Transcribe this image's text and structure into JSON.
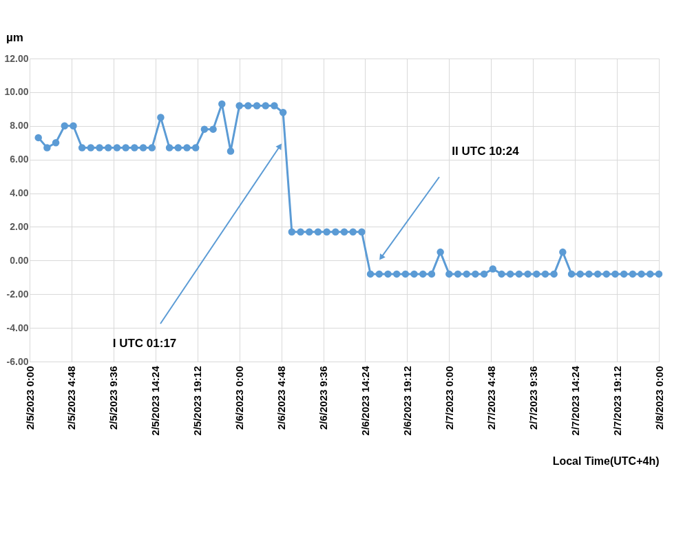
{
  "chart_data": {
    "type": "line",
    "ylabel": "µm",
    "xlabel": "Local Time(UTC+4h)",
    "x": [
      "2023-02-05T01:00",
      "2023-02-05T02:00",
      "2023-02-05T03:00",
      "2023-02-05T04:00",
      "2023-02-05T05:00",
      "2023-02-05T06:00",
      "2023-02-05T07:00",
      "2023-02-05T08:00",
      "2023-02-05T09:00",
      "2023-02-05T10:00",
      "2023-02-05T11:00",
      "2023-02-05T12:00",
      "2023-02-05T13:00",
      "2023-02-05T14:00",
      "2023-02-05T15:00",
      "2023-02-05T16:00",
      "2023-02-05T17:00",
      "2023-02-05T18:00",
      "2023-02-05T19:00",
      "2023-02-05T20:00",
      "2023-02-05T21:00",
      "2023-02-05T22:00",
      "2023-02-05T23:00",
      "2023-02-06T00:00",
      "2023-02-06T01:00",
      "2023-02-06T02:00",
      "2023-02-06T03:00",
      "2023-02-06T04:00",
      "2023-02-06T05:00",
      "2023-02-06T06:00",
      "2023-02-06T07:00",
      "2023-02-06T08:00",
      "2023-02-06T09:00",
      "2023-02-06T10:00",
      "2023-02-06T11:00",
      "2023-02-06T12:00",
      "2023-02-06T13:00",
      "2023-02-06T14:00",
      "2023-02-06T15:00",
      "2023-02-06T16:00",
      "2023-02-06T17:00",
      "2023-02-06T18:00",
      "2023-02-06T19:00",
      "2023-02-06T20:00",
      "2023-02-06T21:00",
      "2023-02-06T22:00",
      "2023-02-06T23:00",
      "2023-02-07T00:00",
      "2023-02-07T01:00",
      "2023-02-07T02:00",
      "2023-02-07T03:00",
      "2023-02-07T04:00",
      "2023-02-07T05:00",
      "2023-02-07T06:00",
      "2023-02-07T07:00",
      "2023-02-07T08:00",
      "2023-02-07T09:00",
      "2023-02-07T10:00",
      "2023-02-07T11:00",
      "2023-02-07T12:00",
      "2023-02-07T13:00",
      "2023-02-07T14:00",
      "2023-02-07T15:00",
      "2023-02-07T16:00",
      "2023-02-07T17:00",
      "2023-02-07T18:00",
      "2023-02-07T19:00",
      "2023-02-07T20:00",
      "2023-02-07T21:00",
      "2023-02-07T22:00",
      "2023-02-07T23:00",
      "2023-02-08T00:00"
    ],
    "series": [
      {
        "color": "#5b9bd5",
        "values": [
          7.3,
          6.7,
          7.0,
          8.0,
          8.0,
          6.7,
          6.7,
          6.7,
          6.7,
          6.7,
          6.7,
          6.7,
          6.7,
          6.7,
          8.5,
          6.7,
          6.7,
          6.7,
          6.7,
          7.8,
          7.8,
          9.3,
          6.5,
          9.2,
          9.2,
          9.2,
          9.2,
          9.2,
          8.8,
          1.7,
          1.7,
          1.7,
          1.7,
          1.7,
          1.7,
          1.7,
          1.7,
          1.7,
          -0.8,
          -0.8,
          -0.8,
          -0.8,
          -0.8,
          -0.8,
          -0.8,
          -0.8,
          0.5,
          -0.8,
          -0.8,
          -0.8,
          -0.8,
          -0.8,
          -0.5,
          -0.8,
          -0.8,
          -0.8,
          -0.8,
          -0.8,
          -0.8,
          -0.8,
          0.5,
          -0.8,
          -0.8,
          -0.8,
          -0.8,
          -0.8,
          -0.8,
          -0.8,
          -0.8,
          -0.8,
          -0.8,
          -0.8
        ]
      }
    ],
    "xlim": [
      "2023-02-05T00:00",
      "2023-02-08T00:00"
    ],
    "xticks": [
      {
        "value": "2023-02-05T00:00",
        "label": "2/5/2023 0:00"
      },
      {
        "value": "2023-02-05T04:48",
        "label": "2/5/2023 4:48"
      },
      {
        "value": "2023-02-05T09:36",
        "label": "2/5/2023 9:36"
      },
      {
        "value": "2023-02-05T14:24",
        "label": "2/5/2023 14:24"
      },
      {
        "value": "2023-02-05T19:12",
        "label": "2/5/2023 19:12"
      },
      {
        "value": "2023-02-06T00:00",
        "label": "2/6/2023 0:00"
      },
      {
        "value": "2023-02-06T04:48",
        "label": "2/6/2023 4:48"
      },
      {
        "value": "2023-02-06T09:36",
        "label": "2/6/2023 9:36"
      },
      {
        "value": "2023-02-06T14:24",
        "label": "2/6/2023 14:24"
      },
      {
        "value": "2023-02-06T19:12",
        "label": "2/6/2023 19:12"
      },
      {
        "value": "2023-02-07T00:00",
        "label": "2/7/2023 0:00"
      },
      {
        "value": "2023-02-07T04:48",
        "label": "2/7/2023 4:48"
      },
      {
        "value": "2023-02-07T09:36",
        "label": "2/7/2023 9:36"
      },
      {
        "value": "2023-02-07T14:24",
        "label": "2/7/2023 14:24"
      },
      {
        "value": "2023-02-07T19:12",
        "label": "2/7/2023 19:12"
      },
      {
        "value": "2023-02-08T00:00",
        "label": "2/8/2023 0:00"
      }
    ],
    "ylim": [
      -6,
      12
    ],
    "yticks": [
      {
        "value": -6,
        "label": "-6.00"
      },
      {
        "value": -4,
        "label": "-4.00"
      },
      {
        "value": -2,
        "label": "-2.00"
      },
      {
        "value": 0,
        "label": "0.00"
      },
      {
        "value": 2,
        "label": "2.00"
      },
      {
        "value": 4,
        "label": "4.00"
      },
      {
        "value": 6,
        "label": "6.00"
      },
      {
        "value": 8,
        "label": "8.00"
      },
      {
        "value": 10,
        "label": "10.00"
      },
      {
        "value": 12,
        "label": "12.00"
      }
    ],
    "grid": true,
    "marker": "circle",
    "line_style": "solid",
    "annotations": [
      "I UTC 01:17",
      "II UTC 10:24"
    ]
  }
}
